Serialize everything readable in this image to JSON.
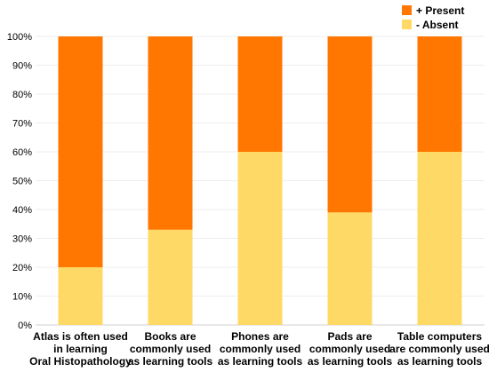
{
  "chart_data": {
    "type": "bar",
    "stacked": true,
    "percent": true,
    "categories": [
      [
        "Atlas is often used",
        "in learning",
        "Oral Histopathology"
      ],
      [
        "Books are",
        "commonly used",
        "as learning tools"
      ],
      [
        "Phones are",
        "commonly used",
        "as learning tools"
      ],
      [
        "Pads are",
        "commonly used",
        "as learning tools"
      ],
      [
        "Table computers",
        "are commonly used",
        "as learning tools"
      ]
    ],
    "series": [
      {
        "name": "-  Absent",
        "color": "#FFD966",
        "values": [
          20,
          33,
          60,
          39,
          60
        ]
      },
      {
        "name": "+ Present",
        "color": "#FF7700",
        "values": [
          80,
          67,
          40,
          61,
          40
        ]
      }
    ],
    "ylim": [
      0,
      100
    ],
    "yticks": [
      "0%",
      "10%",
      "20%",
      "30%",
      "40%",
      "50%",
      "60%",
      "70%",
      "80%",
      "90%",
      "100%"
    ],
    "grid": true,
    "legend": "top-right",
    "title": "",
    "xlabel": "",
    "ylabel": ""
  }
}
